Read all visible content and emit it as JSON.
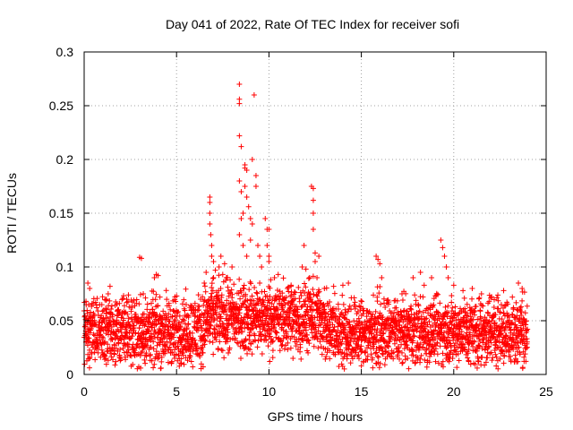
{
  "chart_data": {
    "type": "scatter",
    "title": "Day 041 of 2022, Rate Of TEC Index for receiver sofi",
    "xlabel": "GPS time / hours",
    "ylabel": "ROTI / TECUs",
    "xlim": [
      0,
      25
    ],
    "ylim": [
      0,
      0.3
    ],
    "xticks": [
      0,
      5,
      10,
      15,
      20,
      25
    ],
    "xtick_labels": [
      "0",
      "5",
      "10",
      "15",
      "20",
      "25"
    ],
    "yticks": [
      0,
      0.05,
      0.1,
      0.15,
      0.2,
      0.25,
      0.3
    ],
    "ytick_labels": [
      "0",
      "0.05",
      "0.1",
      "0.15",
      "0.2",
      "0.25",
      "0.3"
    ],
    "grid": true,
    "marker": "+",
    "color": "#ff0000",
    "x_data_range": [
      0,
      24
    ],
    "baseline_value": 0.04,
    "band": [
      0.02,
      0.07
    ],
    "series": [
      {
        "points": [
          [
            0.1,
            0.068
          ],
          [
            0.2,
            0.085
          ],
          [
            0.3,
            0.08
          ],
          [
            1.2,
            0.07
          ],
          [
            1.3,
            0.075
          ],
          [
            1.4,
            0.082
          ],
          [
            2.3,
            0.07
          ],
          [
            3.0,
            0.109
          ],
          [
            3.1,
            0.108
          ],
          [
            3.2,
            0.075
          ],
          [
            3.8,
            0.09
          ],
          [
            3.9,
            0.093
          ],
          [
            4.0,
            0.092
          ],
          [
            4.1,
            0.072
          ],
          [
            6.0,
            0.066
          ],
          [
            6.3,
            0.07
          ],
          [
            6.5,
            0.085
          ],
          [
            6.6,
            0.095
          ],
          [
            6.8,
            0.165
          ],
          [
            6.8,
            0.16
          ],
          [
            6.8,
            0.15
          ],
          [
            6.8,
            0.14
          ],
          [
            6.85,
            0.13
          ],
          [
            6.9,
            0.12
          ],
          [
            6.9,
            0.11
          ],
          [
            7.0,
            0.105
          ],
          [
            7.0,
            0.09
          ],
          [
            7.1,
            0.097
          ],
          [
            7.3,
            0.1
          ],
          [
            7.4,
            0.11
          ],
          [
            7.5,
            0.093
          ],
          [
            7.6,
            0.103
          ],
          [
            7.7,
            0.09
          ],
          [
            7.9,
            0.088
          ],
          [
            8.0,
            0.1
          ],
          [
            8.1,
            0.084
          ],
          [
            8.4,
            0.27
          ],
          [
            8.4,
            0.252
          ],
          [
            8.4,
            0.256
          ],
          [
            8.4,
            0.222
          ],
          [
            8.5,
            0.212
          ],
          [
            8.4,
            0.18
          ],
          [
            8.5,
            0.17
          ],
          [
            8.6,
            0.12
          ],
          [
            8.5,
            0.145
          ],
          [
            8.6,
            0.15
          ],
          [
            8.4,
            0.13
          ],
          [
            8.7,
            0.195
          ],
          [
            8.7,
            0.192
          ],
          [
            8.8,
            0.19
          ],
          [
            8.7,
            0.175
          ],
          [
            8.8,
            0.165
          ],
          [
            8.9,
            0.156
          ],
          [
            9.0,
            0.145
          ],
          [
            9.1,
            0.14
          ],
          [
            9.0,
            0.125
          ],
          [
            8.8,
            0.11
          ],
          [
            9.1,
            0.2
          ],
          [
            9.2,
            0.26
          ],
          [
            9.3,
            0.185
          ],
          [
            9.3,
            0.175
          ],
          [
            9.4,
            0.12
          ],
          [
            9.5,
            0.11
          ],
          [
            9.5,
            0.085
          ],
          [
            9.6,
            0.1
          ],
          [
            9.8,
            0.145
          ],
          [
            9.9,
            0.135
          ],
          [
            10.0,
            0.135
          ],
          [
            9.9,
            0.12
          ],
          [
            10.0,
            0.105
          ],
          [
            10.0,
            0.11
          ],
          [
            10.1,
            0.088
          ],
          [
            10.3,
            0.09
          ],
          [
            10.5,
            0.093
          ],
          [
            10.8,
            0.07
          ],
          [
            11.0,
            0.08
          ],
          [
            11.2,
            0.083
          ],
          [
            11.8,
            0.1
          ],
          [
            11.9,
            0.12
          ],
          [
            12.0,
            0.098
          ],
          [
            12.2,
            0.09
          ],
          [
            12.3,
            0.175
          ],
          [
            12.4,
            0.173
          ],
          [
            12.4,
            0.162
          ],
          [
            12.4,
            0.15
          ],
          [
            12.4,
            0.135
          ],
          [
            12.5,
            0.113
          ],
          [
            12.5,
            0.105
          ],
          [
            12.6,
            0.09
          ],
          [
            12.7,
            0.11
          ],
          [
            13.0,
            0.08
          ],
          [
            13.5,
            0.082
          ],
          [
            14.0,
            0.083
          ],
          [
            14.3,
            0.085
          ],
          [
            15.8,
            0.11
          ],
          [
            15.9,
            0.107
          ],
          [
            16.0,
            0.103
          ],
          [
            16.1,
            0.09
          ],
          [
            17.2,
            0.075
          ],
          [
            17.8,
            0.09
          ],
          [
            18.2,
            0.095
          ],
          [
            18.4,
            0.083
          ],
          [
            18.8,
            0.09
          ],
          [
            19.3,
            0.125
          ],
          [
            19.4,
            0.118
          ],
          [
            19.5,
            0.11
          ],
          [
            19.6,
            0.1
          ],
          [
            19.7,
            0.09
          ],
          [
            20.0,
            0.083
          ],
          [
            20.5,
            0.078
          ],
          [
            21.0,
            0.08
          ],
          [
            21.5,
            0.075
          ],
          [
            22.0,
            0.071
          ],
          [
            22.7,
            0.078
          ],
          [
            23.5,
            0.085
          ],
          [
            23.7,
            0.08
          ],
          [
            0.3,
            0.015
          ],
          [
            1.0,
            0.02
          ],
          [
            3.3,
            0.018
          ],
          [
            4.9,
            0.015
          ],
          [
            5.1,
            0.018
          ],
          [
            7.8,
            0.02
          ],
          [
            11.3,
            0.015
          ],
          [
            15.0,
            0.008
          ],
          [
            15.1,
            0.012
          ],
          [
            17.5,
            0.015
          ],
          [
            20.8,
            0.013
          ],
          [
            23.1,
            0.012
          ],
          [
            23.8,
            0.016
          ]
        ]
      }
    ]
  }
}
